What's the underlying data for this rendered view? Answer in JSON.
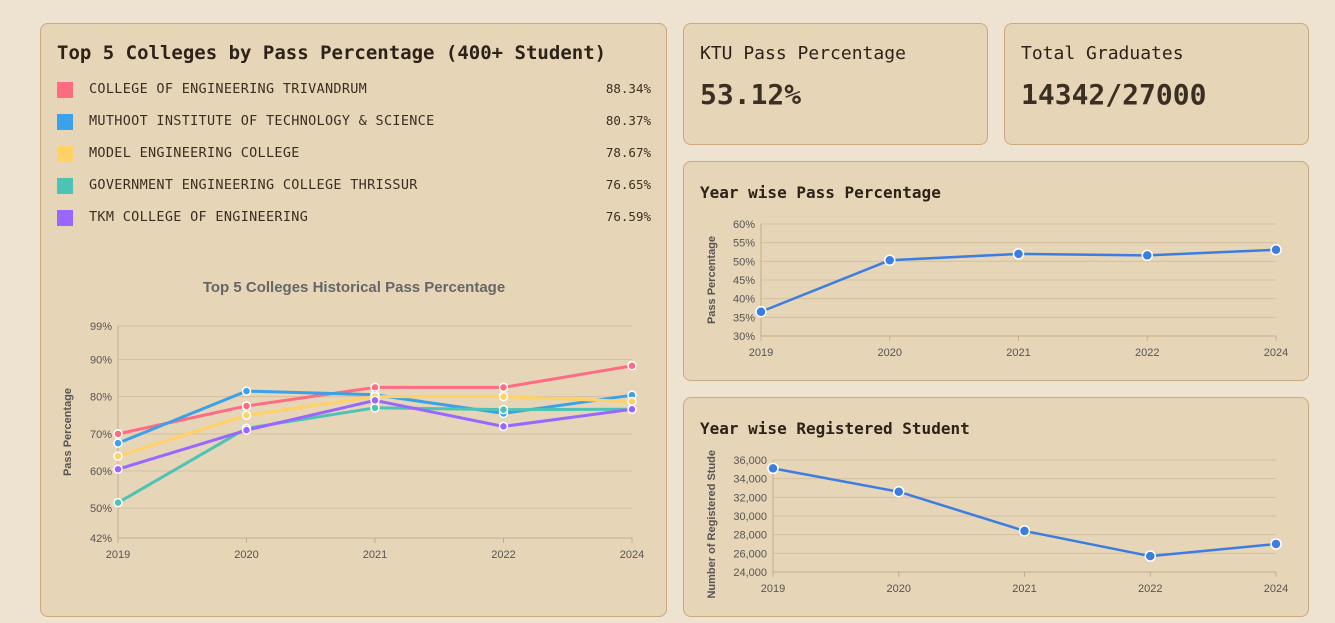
{
  "top5_card": {
    "title": "Top 5 Colleges by Pass Percentage (400+ Student)",
    "colleges": [
      {
        "name": "COLLEGE OF ENGINEERING TRIVANDRUM",
        "pct": "88.34%",
        "color": "#ff6b81"
      },
      {
        "name": "MUTHOOT INSTITUTE OF TECHNOLOGY & SCIENCE",
        "pct": "80.37%",
        "color": "#3ba1e8"
      },
      {
        "name": "MODEL ENGINEERING COLLEGE",
        "pct": "78.67%",
        "color": "#ffd166"
      },
      {
        "name": "GOVERNMENT ENGINEERING COLLEGE THRISSUR",
        "pct": "76.65%",
        "color": "#4cc3b5"
      },
      {
        "name": "TKM COLLEGE OF ENGINEERING",
        "pct": "76.59%",
        "color": "#9966ff"
      }
    ]
  },
  "kpis": {
    "pass_label": "KTU Pass Percentage",
    "pass_value": "53.12%",
    "grad_label": "Total Graduates",
    "grad_value": "14342/27000"
  },
  "year_pass_card": {
    "title": "Year wise Pass Percentage"
  },
  "year_reg_card": {
    "title": "Year wise Registered Student"
  },
  "chart_data": [
    {
      "id": "historical",
      "type": "line",
      "title": "Top 5 Colleges Historical Pass Percentage",
      "xlabel": "",
      "ylabel": "Pass Percentage",
      "x": [
        "2019",
        "2020",
        "2021",
        "2022",
        "2024"
      ],
      "ylim": [
        42,
        99
      ],
      "yticks": [
        "42%",
        "50%",
        "60%",
        "70%",
        "80%",
        "90%",
        "99%"
      ],
      "ytick_values": [
        42,
        50,
        60,
        70,
        80,
        90,
        99
      ],
      "grid": true,
      "series": [
        {
          "name": "COLLEGE OF ENGINEERING TRIVANDRUM",
          "color": "#ff6b81",
          "values": [
            70,
            77.5,
            82.5,
            82.5,
            88.3
          ]
        },
        {
          "name": "MUTHOOT INSTITUTE OF TECHNOLOGY & SCIENCE",
          "color": "#3ba1e8",
          "values": [
            67.5,
            81.5,
            80.5,
            75.5,
            80.4
          ]
        },
        {
          "name": "MODEL ENGINEERING COLLEGE",
          "color": "#ffd166",
          "values": [
            64,
            75,
            80,
            80,
            78.7
          ]
        },
        {
          "name": "GOVERNMENT ENGINEERING COLLEGE THRISSUR",
          "color": "#4cc3b5",
          "values": [
            51.5,
            71.5,
            77,
            76.5,
            76.6
          ]
        },
        {
          "name": "TKM COLLEGE OF ENGINEERING",
          "color": "#9966ff",
          "values": [
            60.5,
            71,
            79,
            72,
            76.6
          ]
        }
      ]
    },
    {
      "id": "yearpass",
      "type": "line",
      "title": "",
      "xlabel": "",
      "ylabel": "Pass Percentage",
      "x": [
        "2019",
        "2020",
        "2021",
        "2022",
        "2024"
      ],
      "ylim": [
        30,
        60
      ],
      "yticks": [
        "30%",
        "35%",
        "40%",
        "45%",
        "50%",
        "55%",
        "60%"
      ],
      "ytick_values": [
        30,
        35,
        40,
        45,
        50,
        55,
        60
      ],
      "grid": true,
      "series": [
        {
          "color": "#3b7de0",
          "values": [
            36.5,
            50.3,
            52,
            51.6,
            53.1
          ]
        }
      ]
    },
    {
      "id": "yearreg",
      "type": "line",
      "title": "",
      "xlabel": "",
      "ylabel": "Number of Registered Students",
      "x": [
        "2019",
        "2020",
        "2021",
        "2022",
        "2024"
      ],
      "ylim": [
        24000,
        36000
      ],
      "yticks": [
        "24,000",
        "26,000",
        "28,000",
        "30,000",
        "32,000",
        "34,000",
        "36,000"
      ],
      "ytick_values": [
        24000,
        26000,
        28000,
        30000,
        32000,
        34000,
        36000
      ],
      "grid": true,
      "series": [
        {
          "color": "#3b7de0",
          "values": [
            35100,
            32600,
            28400,
            25700,
            27000
          ]
        }
      ]
    }
  ]
}
